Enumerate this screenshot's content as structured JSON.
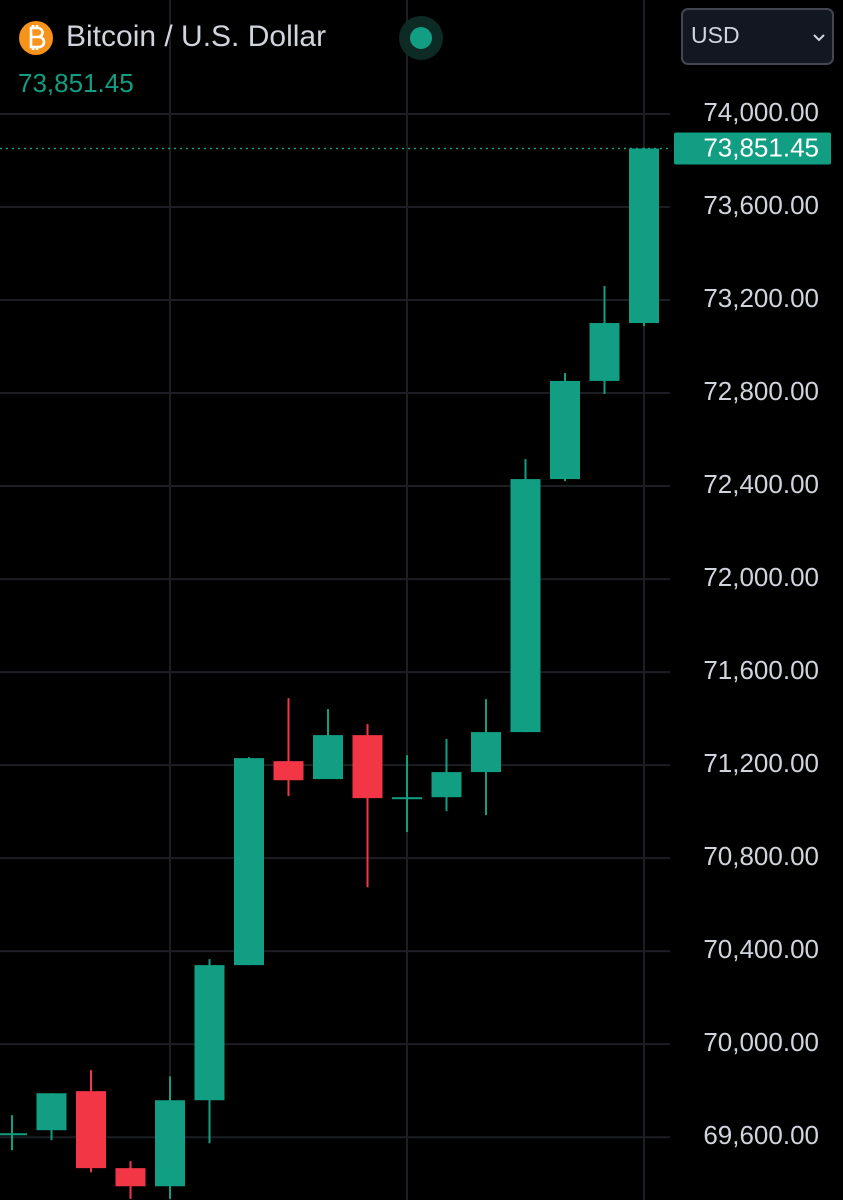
{
  "chart_data": {
    "type": "candlestick",
    "title": "Bitcoin / U.S. Dollar",
    "currency": "USD",
    "price": 73851.45,
    "price_label": "73,851.45",
    "categories": [
      null,
      null,
      null,
      null,
      null,
      null,
      null,
      null,
      null,
      null,
      null,
      null,
      null,
      null,
      null,
      null,
      null
    ],
    "open": [
      69617,
      69630,
      69798,
      69467,
      69389,
      69759,
      70340,
      71217,
      71140,
      71329,
      71062,
      71062,
      71170,
      71342,
      72430,
      72852,
      73101
    ],
    "high": [
      69695,
      69789,
      69888,
      69497,
      69862,
      70366,
      71234,
      71488,
      71441,
      71376,
      71243,
      71312,
      71484,
      72516,
      72886,
      73260,
      73854
    ],
    "low": [
      69544,
      69587,
      69449,
      69335,
      69335,
      69574,
      70340,
      71067,
      71140,
      70675,
      70912,
      71002,
      70985,
      71342,
      72421,
      72796,
      73088
    ],
    "close": [
      69617,
      69789,
      69467,
      69389,
      69759,
      70340,
      71230,
      71135,
      71329,
      71058,
      71062,
      71170,
      71342,
      72430,
      72852,
      73101,
      73851.45
    ],
    "up_color": "#129e82",
    "down_color": "#f23645",
    "ylim": [
      69330,
      74490
    ],
    "yticks": [
      {
        "value": 69600,
        "label": "69,600.00"
      },
      {
        "value": 70000,
        "label": "70,000.00"
      },
      {
        "value": 70400,
        "label": "70,400.00"
      },
      {
        "value": 70800,
        "label": "70,800.00"
      },
      {
        "value": 71200,
        "label": "71,200.00"
      },
      {
        "value": 71600,
        "label": "71,600.00"
      },
      {
        "value": 72000,
        "label": "72,000.00"
      },
      {
        "value": 72400,
        "label": "72,400.00"
      },
      {
        "value": 72800,
        "label": "72,800.00"
      },
      {
        "value": 73200,
        "label": "73,200.00"
      },
      {
        "value": 73600,
        "label": "73,600.00"
      },
      {
        "value": 74000,
        "label": "74,000.00"
      }
    ],
    "grid": true
  }
}
